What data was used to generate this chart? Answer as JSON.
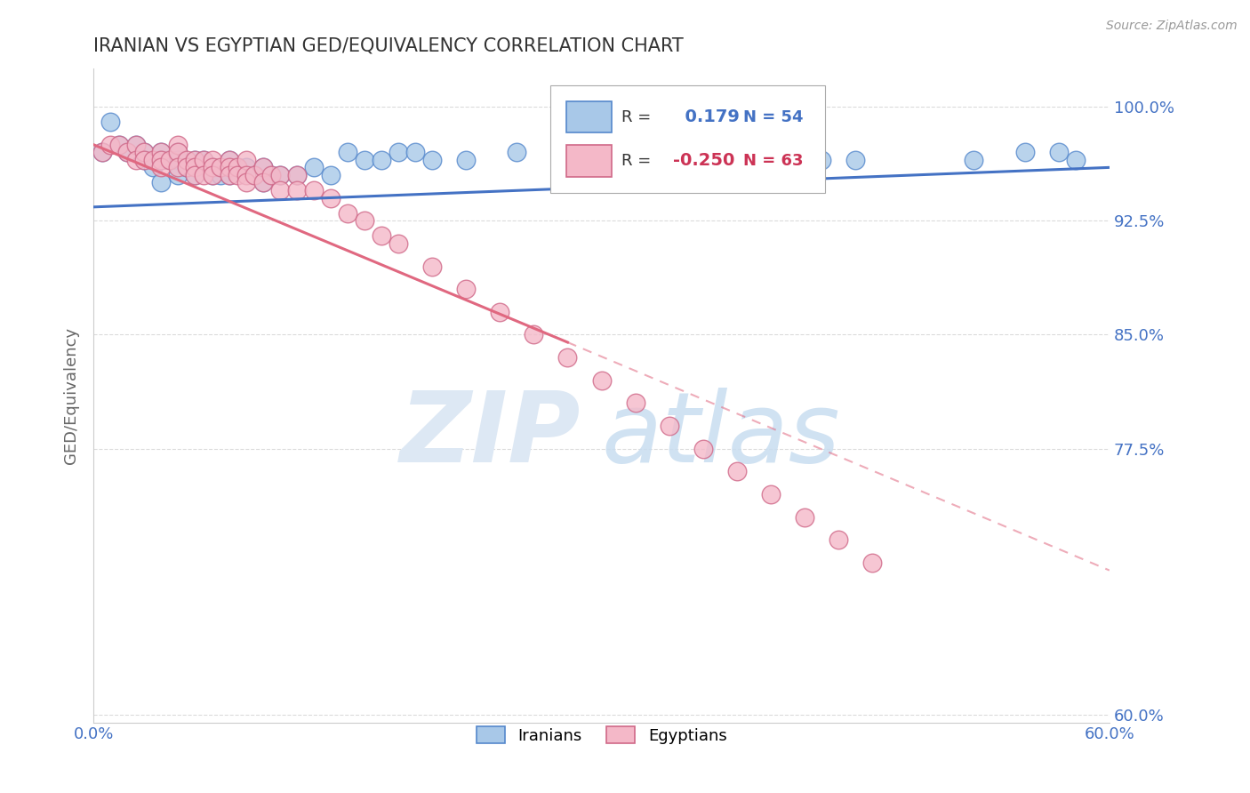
{
  "title": "IRANIAN VS EGYPTIAN GED/EQUIVALENCY CORRELATION CHART",
  "source": "Source: ZipAtlas.com",
  "ylabel": "GED/Equivalency",
  "xlim": [
    0.0,
    0.6
  ],
  "ylim": [
    0.595,
    1.025
  ],
  "yticks": [
    1.0,
    0.925,
    0.85,
    0.775,
    0.6
  ],
  "ytick_labels": [
    "100.0%",
    "92.5%",
    "85.0%",
    "77.5%",
    "60.0%"
  ],
  "xticks": [
    0.0,
    0.6
  ],
  "xtick_labels": [
    "0.0%",
    "60.0%"
  ],
  "iranian_R": 0.179,
  "iranian_N": 54,
  "egyptian_R": -0.25,
  "egyptian_N": 63,
  "iranian_color": "#a8c8e8",
  "egyptian_color": "#f4b8c8",
  "iranian_edge_color": "#5588cc",
  "egyptian_edge_color": "#d06888",
  "iranian_line_color": "#4472c4",
  "egyptian_line_color": "#e06880",
  "background_color": "#ffffff",
  "grid_color": "#cccccc",
  "title_color": "#333333",
  "axis_label_color": "#666666",
  "tick_color": "#4472c4",
  "watermark_zip_color": "#dde8f4",
  "watermark_atlas_color": "#c8ddf0",
  "iranian_x": [
    0.005,
    0.01,
    0.015,
    0.02,
    0.025,
    0.03,
    0.03,
    0.035,
    0.04,
    0.04,
    0.04,
    0.045,
    0.05,
    0.05,
    0.05,
    0.055,
    0.06,
    0.06,
    0.065,
    0.07,
    0.07,
    0.075,
    0.08,
    0.08,
    0.085,
    0.09,
    0.095,
    0.1,
    0.1,
    0.105,
    0.11,
    0.12,
    0.13,
    0.14,
    0.15,
    0.16,
    0.17,
    0.18,
    0.19,
    0.2,
    0.22,
    0.25,
    0.28,
    0.3,
    0.32,
    0.35,
    0.38,
    0.4,
    0.43,
    0.45,
    0.52,
    0.55,
    0.57,
    0.58
  ],
  "iranian_y": [
    0.97,
    0.99,
    0.975,
    0.97,
    0.975,
    0.97,
    0.965,
    0.96,
    0.97,
    0.965,
    0.95,
    0.965,
    0.97,
    0.965,
    0.955,
    0.96,
    0.965,
    0.955,
    0.965,
    0.96,
    0.955,
    0.955,
    0.965,
    0.955,
    0.96,
    0.96,
    0.955,
    0.96,
    0.95,
    0.955,
    0.955,
    0.955,
    0.96,
    0.955,
    0.97,
    0.965,
    0.965,
    0.97,
    0.97,
    0.965,
    0.965,
    0.97,
    0.96,
    0.965,
    0.965,
    0.97,
    0.97,
    0.97,
    0.965,
    0.965,
    0.965,
    0.97,
    0.97,
    0.965
  ],
  "egyptian_x": [
    0.005,
    0.01,
    0.015,
    0.02,
    0.025,
    0.025,
    0.03,
    0.03,
    0.035,
    0.04,
    0.04,
    0.04,
    0.045,
    0.05,
    0.05,
    0.05,
    0.055,
    0.055,
    0.06,
    0.06,
    0.06,
    0.065,
    0.065,
    0.07,
    0.07,
    0.07,
    0.075,
    0.08,
    0.08,
    0.08,
    0.085,
    0.085,
    0.09,
    0.09,
    0.09,
    0.095,
    0.1,
    0.1,
    0.105,
    0.11,
    0.11,
    0.12,
    0.12,
    0.13,
    0.14,
    0.15,
    0.16,
    0.17,
    0.18,
    0.2,
    0.22,
    0.24,
    0.26,
    0.28,
    0.3,
    0.32,
    0.34,
    0.36,
    0.38,
    0.4,
    0.42,
    0.44,
    0.46
  ],
  "egyptian_y": [
    0.97,
    0.975,
    0.975,
    0.97,
    0.975,
    0.965,
    0.97,
    0.965,
    0.965,
    0.97,
    0.965,
    0.96,
    0.965,
    0.975,
    0.97,
    0.96,
    0.965,
    0.96,
    0.965,
    0.96,
    0.955,
    0.965,
    0.955,
    0.965,
    0.96,
    0.955,
    0.96,
    0.965,
    0.96,
    0.955,
    0.96,
    0.955,
    0.965,
    0.955,
    0.95,
    0.955,
    0.96,
    0.95,
    0.955,
    0.955,
    0.945,
    0.955,
    0.945,
    0.945,
    0.94,
    0.93,
    0.925,
    0.915,
    0.91,
    0.895,
    0.88,
    0.865,
    0.85,
    0.835,
    0.82,
    0.805,
    0.79,
    0.775,
    0.76,
    0.745,
    0.73,
    0.715,
    0.7
  ],
  "iranian_line_x0": 0.0,
  "iranian_line_y0": 0.934,
  "iranian_line_x1": 0.6,
  "iranian_line_y1": 0.96,
  "egyptian_line_x0": 0.0,
  "egyptian_line_y0": 0.975,
  "egyptian_line_x1_solid": 0.28,
  "egyptian_line_y1_solid": 0.845,
  "egyptian_line_x1_dashed": 0.6,
  "egyptian_line_y1_dashed": 0.695
}
